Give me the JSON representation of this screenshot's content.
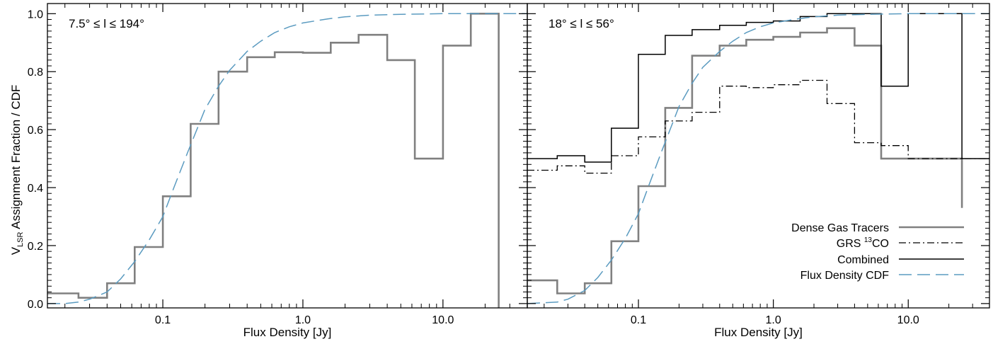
{
  "figure": {
    "ylabel": {
      "main": "V",
      "sub": "LSR",
      "rest": " Assignment Fraction / CDF"
    }
  },
  "colors": {
    "dense": "#808080",
    "grs": "#000000",
    "combined": "#000000",
    "cdf": "#5b9bc0"
  },
  "legend": {
    "placement": "bottom-right of right panel",
    "entries": [
      {
        "key": "dense",
        "label": "Dense Gas Tracers",
        "style": "solid-gray"
      },
      {
        "key": "grs",
        "label_pre": "GRS ",
        "label_sup": "13",
        "label_post": "CO",
        "style": "dash-dot"
      },
      {
        "key": "combined",
        "label": "Combined",
        "style": "solid-black"
      },
      {
        "key": "cdf",
        "label": "Flux Density CDF",
        "style": "dashed-blue"
      }
    ]
  },
  "chart_data": [
    {
      "type": "line",
      "panel_label": "7.5° ≤ l ≤ 194°",
      "xlabel": "Flux Density  [Jy]",
      "xscale": "log",
      "xlim": [
        0.015,
        40
      ],
      "ylim": [
        -0.015,
        1.035
      ],
      "xticks": [
        0.1,
        1.0,
        10.0
      ],
      "xtick_labels": [
        "0.1",
        "1.0",
        "10.0"
      ],
      "yticks": [
        0.0,
        0.2,
        0.4,
        0.6,
        0.8,
        1.0
      ],
      "ytick_labels": [
        "0.0",
        "0.2",
        "0.4",
        "0.6",
        "0.8",
        "1.0"
      ],
      "series": [
        {
          "key": "dense",
          "name": "Dense Gas Tracers",
          "style": "step",
          "edges": [
            0.015,
            0.025,
            0.04,
            0.063,
            0.1,
            0.158,
            0.25,
            0.4,
            0.63,
            1.0,
            1.58,
            2.5,
            4.0,
            6.3,
            10.0,
            15.8,
            25.0
          ],
          "values": [
            0.035,
            0.02,
            0.07,
            0.195,
            0.37,
            0.62,
            0.8,
            0.85,
            0.867,
            0.865,
            0.9,
            0.927,
            0.84,
            0.5,
            0.89,
            1.0
          ],
          "drop_to": -0.015
        },
        {
          "key": "cdf",
          "name": "Flux Density CDF",
          "style": "dashed",
          "x": [
            0.015,
            0.02,
            0.025,
            0.03,
            0.04,
            0.05,
            0.063,
            0.08,
            0.1,
            0.12,
            0.15,
            0.2,
            0.25,
            0.3,
            0.4,
            0.5,
            0.63,
            0.8,
            1.0,
            1.5,
            2.0,
            3.0,
            5.0,
            10.0,
            20.0,
            40.0
          ],
          "y": [
            0.0,
            0.0,
            0.005,
            0.015,
            0.04,
            0.085,
            0.145,
            0.22,
            0.3,
            0.4,
            0.52,
            0.67,
            0.75,
            0.805,
            0.87,
            0.905,
            0.935,
            0.955,
            0.968,
            0.982,
            0.989,
            0.995,
            0.998,
            1.0,
            1.0,
            1.0
          ]
        }
      ]
    },
    {
      "type": "line",
      "panel_label": "18° ≤ l ≤ 56°",
      "xlabel": "Flux Density  [Jy]",
      "xscale": "log",
      "xlim": [
        0.015,
        40
      ],
      "ylim": [
        -0.015,
        1.035
      ],
      "xticks": [
        0.1,
        1.0,
        10.0
      ],
      "xtick_labels": [
        "0.1",
        "1.0",
        "10.0"
      ],
      "yticks": [
        0.0,
        0.2,
        0.4,
        0.6,
        0.8,
        1.0
      ],
      "ytick_labels": [],
      "series": [
        {
          "key": "dense",
          "name": "Dense Gas Tracers",
          "style": "step",
          "edges": [
            0.015,
            0.025,
            0.04,
            0.063,
            0.1,
            0.158,
            0.25,
            0.4,
            0.63,
            1.0,
            1.58,
            2.5,
            4.0,
            6.3,
            10.0,
            15.8,
            25.0
          ],
          "values": [
            0.08,
            0.035,
            0.07,
            0.215,
            0.405,
            0.675,
            0.855,
            0.89,
            0.91,
            0.92,
            0.935,
            0.95,
            0.89,
            0.5,
            0.5,
            0.5
          ],
          "drop_to": 0.33
        },
        {
          "key": "grs",
          "name": "GRS 13CO",
          "style": "step",
          "edges": [
            0.015,
            0.025,
            0.04,
            0.063,
            0.1,
            0.158,
            0.25,
            0.4,
            0.63,
            1.0,
            1.58,
            2.5,
            4.0,
            6.3,
            10.0,
            15.8,
            25.0,
            40.0
          ],
          "values": [
            0.46,
            0.475,
            0.45,
            0.51,
            0.575,
            0.63,
            0.66,
            0.75,
            0.745,
            0.755,
            0.77,
            0.69,
            0.555,
            0.545,
            0.5,
            0.5,
            0.5
          ]
        },
        {
          "key": "combined",
          "name": "Combined",
          "style": "step",
          "edges": [
            0.015,
            0.025,
            0.04,
            0.063,
            0.1,
            0.158,
            0.25,
            0.4,
            0.63,
            1.0,
            1.58,
            2.5,
            4.0,
            6.3,
            10.0,
            15.8,
            25.0,
            40.0
          ],
          "values": [
            0.5,
            0.51,
            0.488,
            0.605,
            0.86,
            0.925,
            0.945,
            0.96,
            0.97,
            0.975,
            0.99,
            1.0,
            1.0,
            0.75,
            1.0,
            1.0,
            0.5
          ]
        },
        {
          "key": "cdf",
          "name": "Flux Density CDF",
          "style": "dashed",
          "x": [
            0.015,
            0.025,
            0.03,
            0.04,
            0.05,
            0.063,
            0.08,
            0.1,
            0.12,
            0.15,
            0.2,
            0.25,
            0.3,
            0.4,
            0.5,
            0.63,
            0.8,
            1.0,
            1.5,
            2.0,
            3.0,
            5.0,
            10.0,
            20.0,
            40.0
          ],
          "y": [
            0.0,
            0.005,
            0.015,
            0.045,
            0.09,
            0.15,
            0.225,
            0.31,
            0.41,
            0.53,
            0.68,
            0.76,
            0.815,
            0.87,
            0.905,
            0.935,
            0.955,
            0.968,
            0.982,
            0.989,
            0.995,
            0.998,
            1.0,
            1.0,
            1.0
          ]
        }
      ]
    }
  ]
}
